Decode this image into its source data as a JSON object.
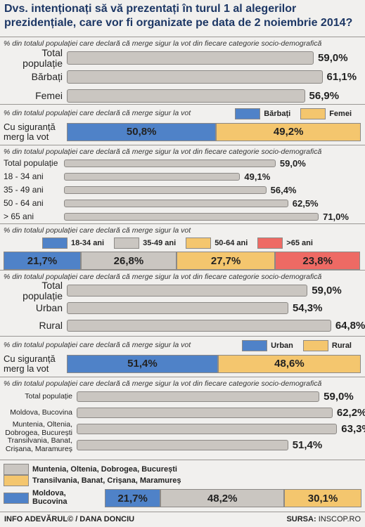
{
  "title": "Dvs. intenționați să vă prezentați în turul 1 al alegerilor prezidențiale, care vor fi organizate pe data de 2 noiembrie 2014?",
  "chart_data": [
    {
      "type": "bar",
      "subtitle": "% din totalul populației care declară că merge sigur la vot din fiecare categorie socio-demografică",
      "categories": [
        "Total populație",
        "Bărbați",
        "Femei"
      ],
      "values": [
        59.0,
        61.1,
        56.9
      ],
      "value_labels": [
        "59,0%",
        "61,1%",
        "56,9%"
      ],
      "color": "#cac6c1"
    },
    {
      "type": "stacked_bar",
      "subtitle": "% din totalul populației care declară că merge sigur la vot",
      "categories": [
        "Cu siguranță merg la vot"
      ],
      "series": [
        {
          "name": "Bărbați",
          "color": "#4f82c8",
          "values": [
            50.8
          ],
          "value_labels": [
            "50,8%"
          ]
        },
        {
          "name": "Femei",
          "color": "#f4c66e",
          "values": [
            49.2
          ],
          "value_labels": [
            "49,2%"
          ]
        }
      ]
    },
    {
      "type": "bar",
      "subtitle": "% din totalul populației care declară că merge sigur la vot din fiecare categorie socio-demografică",
      "categories": [
        "Total populație",
        "18 - 34 ani",
        "35 - 49 ani",
        "50 - 64 ani",
        "> 65 ani"
      ],
      "values": [
        59.0,
        49.1,
        56.4,
        62.5,
        71.0
      ],
      "value_labels": [
        "59,0%",
        "49,1%",
        "56,4%",
        "62,5%",
        "71,0%"
      ],
      "color": "#cac6c1"
    },
    {
      "type": "stacked_bar",
      "subtitle": "% din totalul populației care declară că merge sigur la vot",
      "categories": [
        null
      ],
      "series": [
        {
          "name": "18-34 ani",
          "color": "#4f82c8",
          "values": [
            21.7
          ],
          "value_labels": [
            "21,7%"
          ]
        },
        {
          "name": "35-49 ani",
          "color": "#cac6c1",
          "values": [
            26.8
          ],
          "value_labels": [
            "26,8%"
          ]
        },
        {
          "name": "50-64 ani",
          "color": "#f4c66e",
          "values": [
            27.7
          ],
          "value_labels": [
            "27,7%"
          ]
        },
        {
          "name": ">65 ani",
          "color": "#ee6a64",
          "values": [
            23.8
          ],
          "value_labels": [
            "23,8%"
          ]
        }
      ]
    },
    {
      "type": "bar",
      "subtitle": "% din totalul populației care declară că merge sigur la vot din fiecare categorie socio-demografică",
      "categories": [
        "Total populație",
        "Urban",
        "Rural"
      ],
      "values": [
        59.0,
        54.3,
        64.8
      ],
      "value_labels": [
        "59,0%",
        "54,3%",
        "64,8%"
      ],
      "color": "#cac6c1"
    },
    {
      "type": "stacked_bar",
      "subtitle": "% din totalul populației care declară că merge sigur la vot",
      "categories": [
        "Cu siguranță merg la vot"
      ],
      "series": [
        {
          "name": "Urban",
          "color": "#4f82c8",
          "values": [
            51.4
          ],
          "value_labels": [
            "51,4%"
          ]
        },
        {
          "name": "Rural",
          "color": "#f4c66e",
          "values": [
            48.6
          ],
          "value_labels": [
            "48,6%"
          ]
        }
      ]
    },
    {
      "type": "bar",
      "subtitle": "% din totalul populației care declară că merge sigur la vot din fiecare categorie socio-demografică",
      "categories": [
        "Total populație",
        "Moldova, Bucovina",
        "Muntenia, Oltenia, Dobrogea, București",
        "Transilvania, Banat, Crișana, Maramureș"
      ],
      "values": [
        59.0,
        62.2,
        63.3,
        51.4
      ],
      "value_labels": [
        "59,0%",
        "62,2%",
        "63,3%",
        "51,4%"
      ],
      "color": "#cac6c1"
    },
    {
      "type": "stacked_bar",
      "categories": [
        null
      ],
      "series": [
        {
          "name": "Muntenia, Oltenia, Dobrogea, București",
          "color": "#cac6c1",
          "values": [
            48.2
          ],
          "value_labels": [
            "48,2%"
          ]
        },
        {
          "name": "Transilvania, Banat, Crișana, Maramureș",
          "color": "#f4c66e",
          "values": [
            30.1
          ],
          "value_labels": [
            "30,1%"
          ]
        },
        {
          "name": "Moldova, Bucovina",
          "color": "#4f82c8",
          "values": [
            21.7
          ],
          "value_labels": [
            "21,7%"
          ]
        }
      ]
    }
  ],
  "footer": {
    "credit": "INFO ADEVĂRUL© / DANA DONCIU",
    "source_label": "SURSA:",
    "source": "INSCOP.RO"
  }
}
